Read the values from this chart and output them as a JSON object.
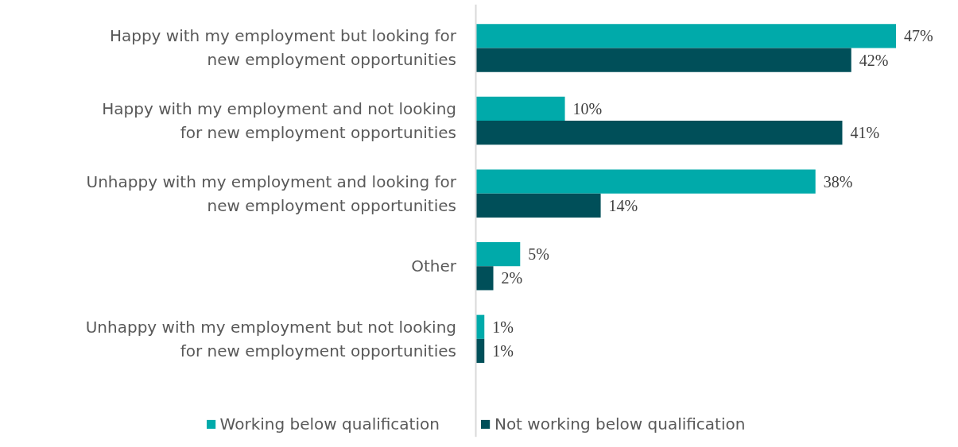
{
  "chart_data": {
    "type": "bar",
    "orientation": "horizontal",
    "categories": [
      "Happy with my employment but looking for new employment opportunities",
      "Happy with my employment and not looking for new employment opportunities",
      "Unhappy with my employment and looking for new employment opportunities",
      "Other",
      "Unhappy with my employment but not looking for new employment opportunities"
    ],
    "series": [
      {
        "name": "Working below qualification",
        "color": "#00aaaa",
        "values": [
          47,
          10,
          38,
          5,
          1
        ],
        "value_labels": [
          "47%",
          "10%",
          "38%",
          "5%",
          "1%"
        ]
      },
      {
        "name": "Not working below qualification",
        "color": "#004f59",
        "values": [
          42,
          41,
          14,
          2,
          1
        ],
        "value_labels": [
          "42%",
          "41%",
          "14%",
          "2%",
          "1%"
        ]
      }
    ],
    "legend": "bottom",
    "grid": false
  }
}
